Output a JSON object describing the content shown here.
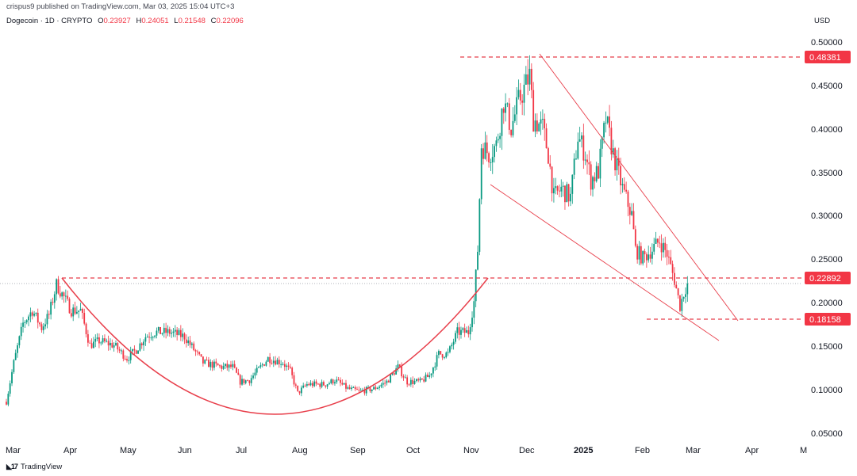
{
  "header": {
    "published": "crispus9 published on TradingView.com, Mar 03, 2025 15:04 UTC+3",
    "symbol": "Dogecoin · 1D · CRYPTO",
    "o_label": "O",
    "o_value": "0.23927",
    "h_label": "H",
    "h_value": "0.24051",
    "l_label": "L",
    "l_value": "0.21548",
    "c_label": "C",
    "c_value": "0.22096",
    "currency": "USD"
  },
  "footer": {
    "brand": "TradingView"
  },
  "colors": {
    "up": "#089981",
    "down": "#f23645",
    "annotation": "#e83f4b",
    "label_bg": "#f23645"
  },
  "chart_data": {
    "type": "candlestick",
    "x_ticks": [
      "Mar",
      "Apr",
      "May",
      "Jun",
      "Jul",
      "Aug",
      "Sep",
      "Oct",
      "Nov",
      "Dec",
      "2025",
      "Feb",
      "Mar",
      "Apr",
      "M"
    ],
    "y_ticks": [
      "0.50000",
      "0.45000",
      "0.40000",
      "0.35000",
      "0.30000",
      "0.25000",
      "0.20000",
      "0.15000",
      "0.10000",
      "0.05000"
    ],
    "ylim": [
      0.03,
      0.505
    ],
    "price_labels": [
      {
        "label": "0.48381",
        "value": 0.48381
      },
      {
        "label": "0.22892",
        "value": 0.22892
      },
      {
        "label": "0.18158",
        "value": 0.18158
      }
    ],
    "waypoints": [
      [
        "2024-03-01",
        0.085
      ],
      [
        "2024-03-05",
        0.13
      ],
      [
        "2024-03-10",
        0.175
      ],
      [
        "2024-03-15",
        0.19
      ],
      [
        "2024-03-20",
        0.17
      ],
      [
        "2024-03-24",
        0.185
      ],
      [
        "2024-03-28",
        0.22
      ],
      [
        "2024-04-01",
        0.205
      ],
      [
        "2024-04-05",
        0.19
      ],
      [
        "2024-04-10",
        0.19
      ],
      [
        "2024-04-15",
        0.15
      ],
      [
        "2024-04-20",
        0.155
      ],
      [
        "2024-04-28",
        0.15
      ],
      [
        "2024-05-05",
        0.135
      ],
      [
        "2024-05-10",
        0.145
      ],
      [
        "2024-05-15",
        0.16
      ],
      [
        "2024-05-20",
        0.165
      ],
      [
        "2024-05-28",
        0.165
      ],
      [
        "2024-06-05",
        0.16
      ],
      [
        "2024-06-10",
        0.145
      ],
      [
        "2024-06-15",
        0.13
      ],
      [
        "2024-06-25",
        0.125
      ],
      [
        "2024-07-01",
        0.125
      ],
      [
        "2024-07-05",
        0.108
      ],
      [
        "2024-07-10",
        0.11
      ],
      [
        "2024-07-20",
        0.135
      ],
      [
        "2024-07-28",
        0.13
      ],
      [
        "2024-08-01",
        0.12
      ],
      [
        "2024-08-05",
        0.095
      ],
      [
        "2024-08-10",
        0.105
      ],
      [
        "2024-08-20",
        0.105
      ],
      [
        "2024-08-25",
        0.11
      ],
      [
        "2024-09-01",
        0.1
      ],
      [
        "2024-09-07",
        0.097
      ],
      [
        "2024-09-15",
        0.1
      ],
      [
        "2024-09-22",
        0.108
      ],
      [
        "2024-09-28",
        0.125
      ],
      [
        "2024-10-03",
        0.108
      ],
      [
        "2024-10-10",
        0.108
      ],
      [
        "2024-10-15",
        0.115
      ],
      [
        "2024-10-20",
        0.14
      ],
      [
        "2024-10-25",
        0.14
      ],
      [
        "2024-10-30",
        0.165
      ],
      [
        "2024-11-05",
        0.165
      ],
      [
        "2024-11-08",
        0.2
      ],
      [
        "2024-11-10",
        0.26
      ],
      [
        "2024-11-12",
        0.38
      ],
      [
        "2024-11-16",
        0.37
      ],
      [
        "2024-11-20",
        0.38
      ],
      [
        "2024-11-24",
        0.43
      ],
      [
        "2024-11-28",
        0.4
      ],
      [
        "2024-12-02",
        0.43
      ],
      [
        "2024-12-08",
        0.46
      ],
      [
        "2024-12-10",
        0.41
      ],
      [
        "2024-12-15",
        0.4
      ],
      [
        "2024-12-18",
        0.37
      ],
      [
        "2024-12-21",
        0.32
      ],
      [
        "2024-12-25",
        0.33
      ],
      [
        "2024-12-30",
        0.32
      ],
      [
        "2025-01-03",
        0.39
      ],
      [
        "2025-01-07",
        0.37
      ],
      [
        "2025-01-10",
        0.34
      ],
      [
        "2025-01-14",
        0.35
      ],
      [
        "2025-01-18",
        0.41
      ],
      [
        "2025-01-22",
        0.37
      ],
      [
        "2025-01-27",
        0.33
      ],
      [
        "2025-02-01",
        0.3
      ],
      [
        "2025-02-03",
        0.26
      ],
      [
        "2025-02-07",
        0.25
      ],
      [
        "2025-02-12",
        0.26
      ],
      [
        "2025-02-16",
        0.27
      ],
      [
        "2025-02-20",
        0.255
      ],
      [
        "2025-02-24",
        0.225
      ],
      [
        "2025-02-27",
        0.195
      ],
      [
        "2025-03-01",
        0.21
      ],
      [
        "2025-03-03",
        0.221
      ]
    ]
  }
}
